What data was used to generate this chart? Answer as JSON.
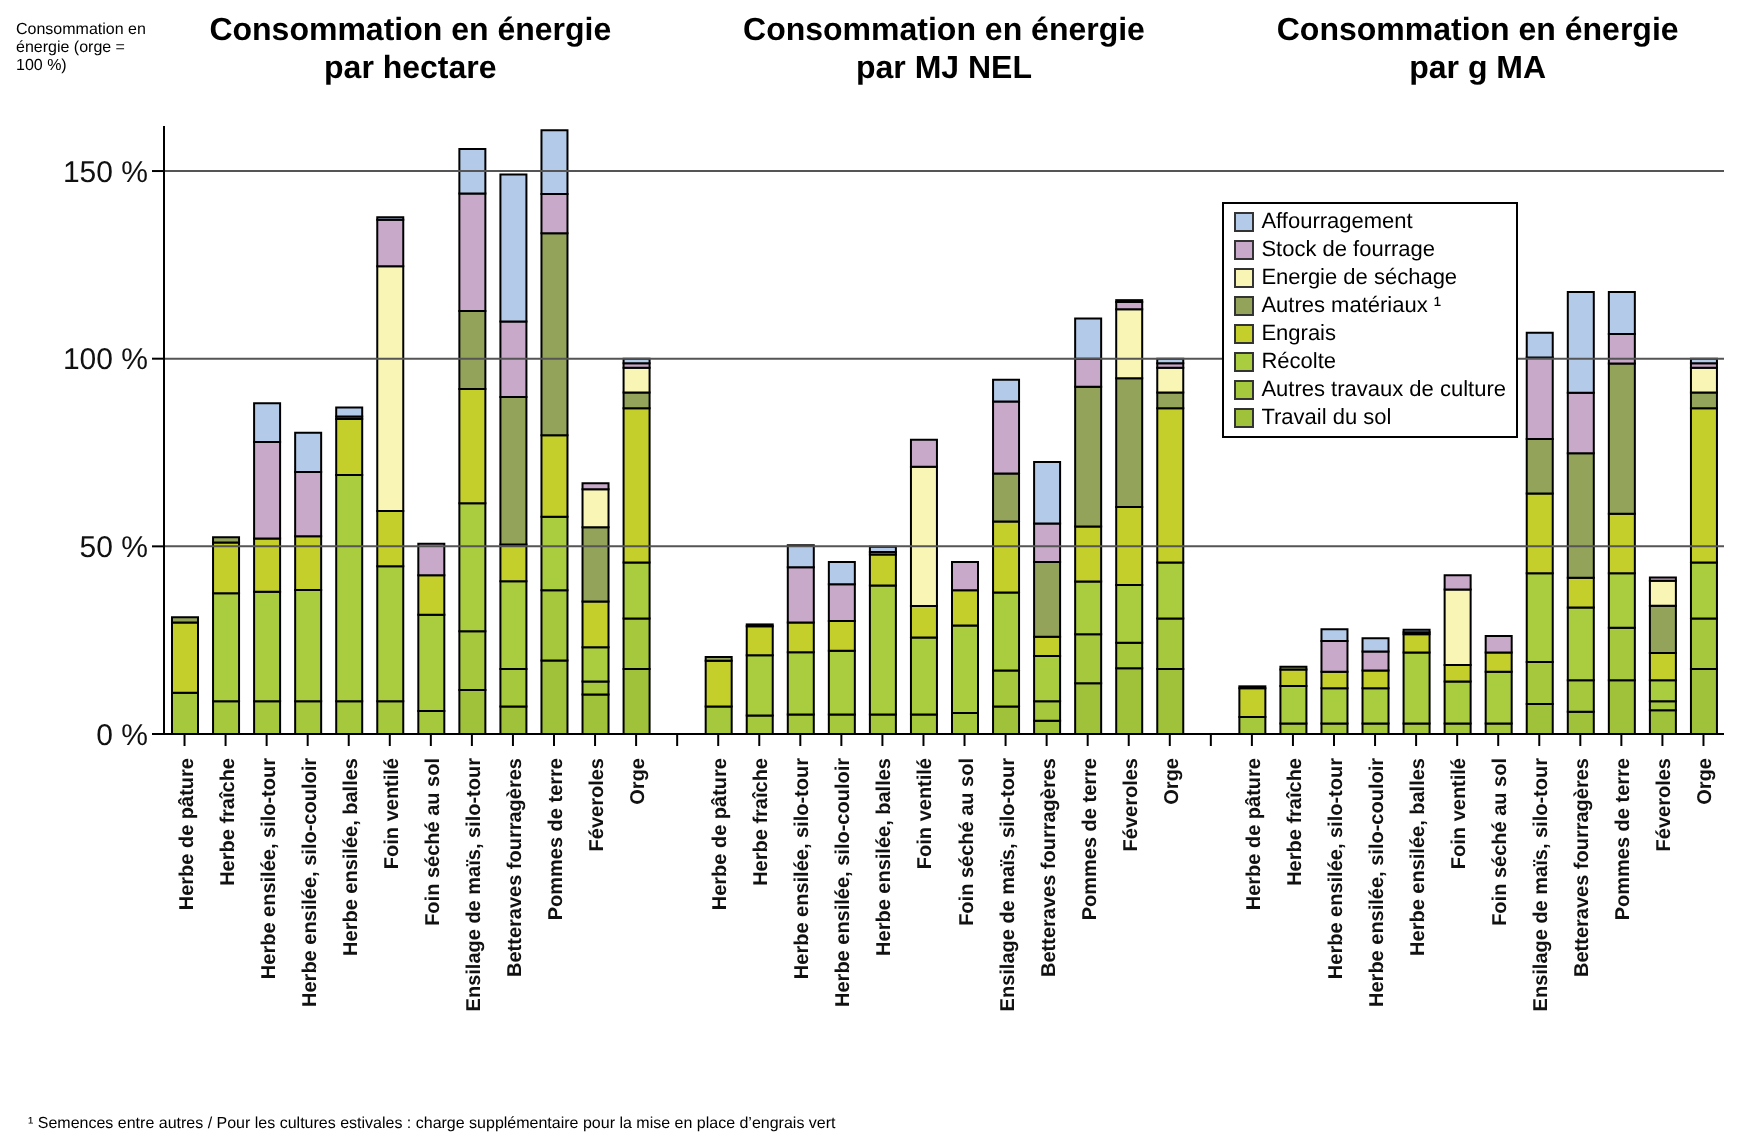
{
  "chart_data": {
    "type": "bar",
    "stacked": true,
    "ylabel": "Consommation en énergie (orge = 100 %)",
    "annotations": [
      "Consommation en énergie par hectare",
      "Consommation en énergie par MJ NEL",
      "Consommation en énergie par g MA",
      "¹ Semences entre autres / Pour les cultures estivales : charge supplémentaire pour la mise en place d’engrais vert"
    ],
    "legend": "top right",
    "categories": [
      "Herbe de pâture",
      "Herbe fraîche",
      "Herbe ensilée, silo-tour",
      "Herbe ensilée, silo-couloir",
      "Herbe ensilée, balles",
      "Foin ventilé",
      "Foin séché au sol",
      "Ensilage de maïs, silo-tour",
      "Betteraves fourragères",
      "Pommes de terre",
      "Féveroles",
      "Orge",
      null,
      "Herbe de pâture",
      "Herbe fraîche",
      "Herbe ensilée, silo-tour",
      "Herbe ensilée, silo-couloir",
      "Herbe ensilée, balles",
      "Foin ventilé",
      "Foin séché au sol",
      "Ensilage de maïs, silo-tour",
      "Betteraves fourragères",
      "Pommes de terre",
      "Féveroles",
      "Orge",
      null,
      "Herbe de pâture",
      "Herbe fraîche",
      "Herbe ensilée, silo-tour",
      "Herbe ensilée, silo-couloir",
      "Herbe ensilée, balles",
      "Foin ventilé",
      "Foin séché au sol",
      "Ensilage de maïs, silo-tour",
      "Betteraves fourragères",
      "Pommes de terre",
      "Féveroles",
      "Orge"
    ],
    "ylim": [
      0,
      162
    ],
    "yticks": [
      {
        "value": 0,
        "label": "0 %"
      },
      {
        "value": 50,
        "label": "50 %"
      },
      {
        "value": 100,
        "label": "100 %"
      },
      {
        "value": 150,
        "label": "150 %"
      }
    ],
    "grid": "y",
    "series": [
      {
        "name": "Travail du sol",
        "color": "#9fc23a",
        "values": [
          null,
          null,
          null,
          null,
          null,
          null,
          null,
          11.7,
          7.3,
          19.6,
          10.5,
          17.3,
          null,
          null,
          null,
          null,
          null,
          null,
          null,
          null,
          7.3,
          3.5,
          13.5,
          17.5,
          17.3,
          null,
          null,
          null,
          null,
          null,
          null,
          null,
          null,
          8,
          5.9,
          14.3,
          6.3,
          17.3
        ]
      },
      {
        "name": "Autres travaux de culture",
        "color": "#a6c83c",
        "values": [
          11,
          8.7,
          8.7,
          8.7,
          8.7,
          8.7,
          6.1,
          15.7,
          10,
          18.7,
          3.5,
          13.5,
          null,
          7.3,
          4.9,
          5.2,
          5.2,
          5.2,
          5.2,
          5.6,
          9.6,
          5.2,
          13.1,
          6.8,
          13.5,
          null,
          4.5,
          2.8,
          2.8,
          2.8,
          2.8,
          2.8,
          2.8,
          11.2,
          8.4,
          14,
          2.4,
          13.5
        ]
      },
      {
        "name": "Récolte",
        "color": "#aacd40",
        "values": [
          null,
          28.8,
          29.2,
          29.7,
          60.3,
          36,
          25.7,
          34.1,
          23.4,
          19.6,
          9.1,
          14.9,
          null,
          null,
          16.1,
          16.6,
          17,
          34.4,
          20.5,
          23.3,
          20.8,
          12.1,
          14,
          15.4,
          14.9,
          null,
          null,
          10,
          9.4,
          9.4,
          18.9,
          11.2,
          13.8,
          23.6,
          19.4,
          14.5,
          5.6,
          14.9
        ]
      },
      {
        "name": "Engrais",
        "color": "#c5cf2c",
        "values": [
          18.7,
          13.5,
          14.2,
          14.3,
          14.9,
          14.7,
          10.5,
          30.4,
          9.8,
          21.7,
          12.2,
          41.1,
          null,
          12.2,
          7.7,
          7.9,
          7.9,
          8.2,
          8.4,
          9.4,
          18.9,
          5.1,
          14.7,
          20.8,
          41.1,
          null,
          7.7,
          4.4,
          4.4,
          4.7,
          4.9,
          4.4,
          5.1,
          21.3,
          7.9,
          15.9,
          7.3,
          41.1
        ]
      },
      {
        "name": "Autres matériaux ¹",
        "color": "#93a45a",
        "values": [
          1.4,
          1.4,
          null,
          null,
          0.7,
          null,
          null,
          20.8,
          39.3,
          53.8,
          19.8,
          4.2,
          null,
          1,
          0.5,
          null,
          null,
          0.7,
          null,
          null,
          12.8,
          19.9,
          37.2,
          34.3,
          4.2,
          null,
          0.5,
          0.7,
          null,
          null,
          0.5,
          null,
          null,
          14.5,
          33.2,
          40,
          12.6,
          4.2
        ]
      },
      {
        "name": "Energie de séchage",
        "color": "#f9f5b5",
        "values": [
          null,
          null,
          null,
          null,
          null,
          65.2,
          null,
          null,
          null,
          null,
          10.1,
          6.6,
          null,
          null,
          null,
          null,
          null,
          null,
          37.1,
          null,
          null,
          null,
          null,
          18.4,
          6.6,
          null,
          null,
          null,
          null,
          null,
          null,
          20.1,
          null,
          null,
          null,
          null,
          6.6,
          6.6
        ]
      },
      {
        "name": "Stock de fourrage",
        "color": "#c9a9c9",
        "values": [
          null,
          null,
          25.7,
          17.1,
          null,
          12.4,
          8.4,
          31.3,
          20.1,
          10.5,
          1.6,
          1.2,
          null,
          null,
          null,
          14.7,
          9.8,
          null,
          7.2,
          7.5,
          19.2,
          10.3,
          7.5,
          1.9,
          1.2,
          null,
          null,
          null,
          8.2,
          5.1,
          null,
          3.8,
          4.4,
          21.7,
          16.1,
          7.9,
          0.9,
          1.2
        ]
      },
      {
        "name": "Affourragement",
        "color": "#b3cbe9",
        "values": [
          null,
          null,
          10.3,
          10.5,
          2.4,
          0.7,
          null,
          11.9,
          39.2,
          17,
          null,
          1.2,
          null,
          null,
          null,
          5.9,
          5.9,
          1.4,
          null,
          null,
          5.8,
          16.4,
          10.7,
          0.5,
          1.2,
          null,
          null,
          null,
          3.1,
          3.5,
          0.7,
          null,
          null,
          6.6,
          26.9,
          11.2,
          null,
          1.2
        ]
      }
    ]
  }
}
